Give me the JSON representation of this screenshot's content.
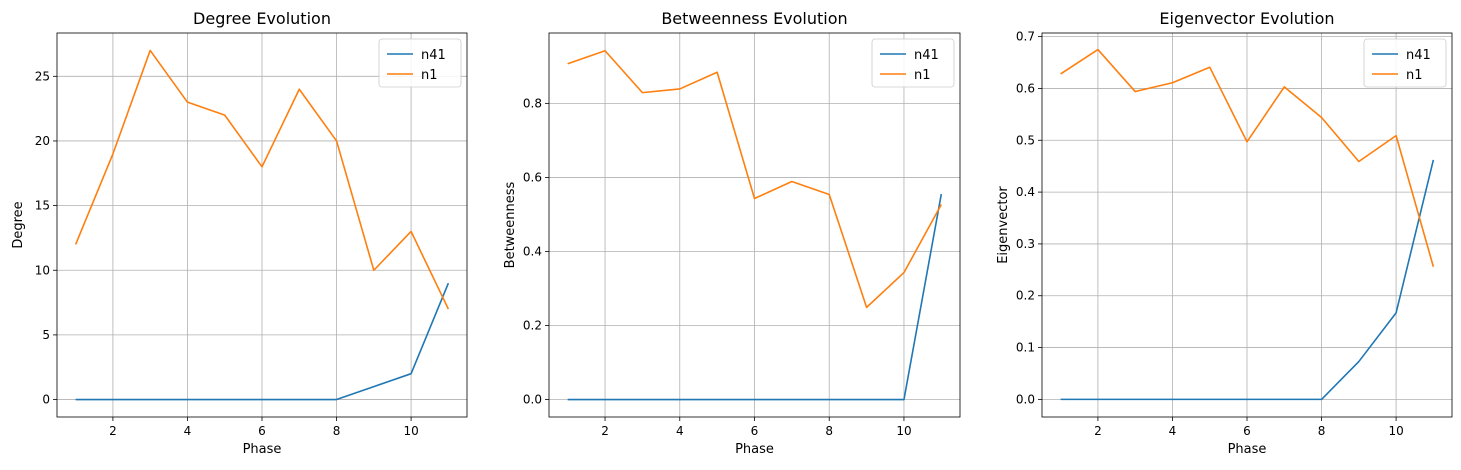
{
  "chart_data": [
    {
      "type": "line",
      "title": "Degree Evolution",
      "xlabel": "Phase",
      "ylabel": "Degree",
      "x": [
        1,
        2,
        3,
        4,
        5,
        6,
        7,
        8,
        9,
        10,
        11
      ],
      "xlim": [
        0.5,
        11.5
      ],
      "ylim": [
        -1.35,
        28.35
      ],
      "xticks": [
        2,
        4,
        6,
        8,
        10
      ],
      "yticks": [
        0,
        5,
        10,
        15,
        20,
        25
      ],
      "ytick_labels": [
        "0",
        "5",
        "10",
        "15",
        "20",
        "25"
      ],
      "grid": true,
      "legend": "upper right",
      "series": [
        {
          "name": "n41",
          "color": "#1f77b4",
          "values": [
            0,
            0,
            0,
            0,
            0,
            0,
            0,
            0,
            1,
            2,
            9
          ]
        },
        {
          "name": "n1",
          "color": "#ff7f0e",
          "values": [
            12,
            19,
            27,
            23,
            22,
            18,
            24,
            20,
            10,
            13,
            7
          ]
        }
      ]
    },
    {
      "type": "line",
      "title": "Betweenness Evolution",
      "xlabel": "Phase",
      "ylabel": "Betweenness",
      "x": [
        1,
        2,
        3,
        4,
        5,
        6,
        7,
        8,
        9,
        10,
        11
      ],
      "xlim": [
        0.5,
        11.5
      ],
      "ylim": [
        -0.047,
        0.99
      ],
      "xticks": [
        2,
        4,
        6,
        8,
        10
      ],
      "yticks": [
        0,
        0.2,
        0.4,
        0.6,
        0.8
      ],
      "ytick_labels": [
        "0.0",
        "0.2",
        "0.4",
        "0.6",
        "0.8"
      ],
      "grid": true,
      "legend": "upper right",
      "series": [
        {
          "name": "n41",
          "color": "#1f77b4",
          "values": [
            0,
            0,
            0,
            0,
            0,
            0,
            0,
            0,
            0,
            0,
            0.555
          ]
        },
        {
          "name": "n1",
          "color": "#ff7f0e",
          "values": [
            0.907,
            0.942,
            0.829,
            0.839,
            0.884,
            0.543,
            0.589,
            0.554,
            0.249,
            0.343,
            0.527
          ]
        }
      ]
    },
    {
      "type": "line",
      "title": "Eigenvector Evolution",
      "xlabel": "Phase",
      "ylabel": "Eigenvector",
      "x": [
        1,
        2,
        3,
        4,
        5,
        6,
        7,
        8,
        9,
        10,
        11
      ],
      "xlim": [
        0.5,
        11.5
      ],
      "ylim": [
        -0.034,
        0.707
      ],
      "xticks": [
        2,
        4,
        6,
        8,
        10
      ],
      "yticks": [
        0,
        0.1,
        0.2,
        0.3,
        0.4,
        0.5,
        0.6,
        0.7
      ],
      "ytick_labels": [
        "0.0",
        "0.1",
        "0.2",
        "0.3",
        "0.4",
        "0.5",
        "0.6",
        "0.7"
      ],
      "grid": true,
      "legend": "upper right",
      "series": [
        {
          "name": "n41",
          "color": "#1f77b4",
          "values": [
            0,
            0,
            0,
            0,
            0,
            0,
            0,
            0,
            0.073,
            0.167,
            0.462
          ]
        },
        {
          "name": "n1",
          "color": "#ff7f0e",
          "values": [
            0.628,
            0.675,
            0.594,
            0.611,
            0.641,
            0.497,
            0.603,
            0.544,
            0.459,
            0.509,
            0.256
          ]
        }
      ]
    }
  ]
}
